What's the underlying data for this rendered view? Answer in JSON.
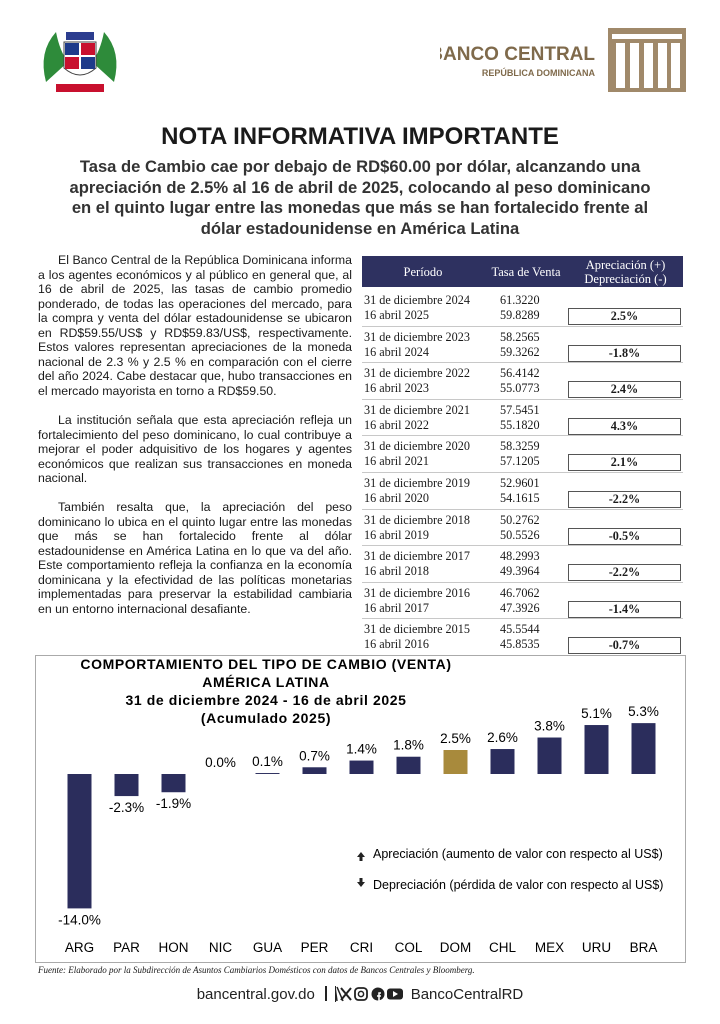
{
  "header": {
    "bank_name": "BANCO CENTRAL",
    "bank_subtitle": "REPÚBLICA DOMINICANA"
  },
  "title": "NOTA INFORMATIVA IMPORTANTE",
  "subtitle": "Tasa de Cambio cae por debajo de RD$60.00 por dólar, alcanzando una apreciación de 2.5% al 16 de abril de 2025, colocando al peso dominicano en el quinto lugar entre las monedas que más se han fortalecido frente al dólar estadounidense en América Latina",
  "paragraphs": [
    "El Banco Central de la República Dominicana informa a los agentes económicos y al público en general que, al 16 de abril de 2025, las tasas de cambio promedio ponderado, de todas las operaciones del mercado, para la compra y venta del dólar estadounidense se ubicaron en RD$59.55/US$ y RD$59.83/US$, respectivamente. Estos valores representan apreciaciones de la moneda nacional de 2.3 % y 2.5 % en comparación con el cierre del año 2024. Cabe destacar que, hubo transacciones en el mercado mayorista en torno a RD$59.50.",
    "La institución señala que esta apreciación refleja un fortalecimiento del peso dominicano, lo cual contribuye a mejorar el poder adquisitivo de los hogares y agentes económicos que realizan sus transacciones en moneda nacional.",
    "También resalta que, la apreciación del peso dominicano lo ubica en el quinto lugar entre las monedas que más se han fortalecido frente al dólar estadounidense en América Latina en lo que va del año. Este comportamiento refleja la confianza en la economía dominicana y la efectividad de las políticas monetarias implementadas para preservar la estabilidad cambiaria en un entorno internacional desafiante."
  ],
  "table": {
    "columns": [
      "Período",
      "Tasa de Venta",
      "Apreciación (+)",
      "Depreciación (-)"
    ],
    "rows": [
      {
        "period_start": "31 de diciembre 2024",
        "rate_start": "61.3220",
        "period_end": "16 abril 2025",
        "rate_end": "59.8289",
        "change": "2.5%"
      },
      {
        "period_start": "31 de diciembre 2023",
        "rate_start": "58.2565",
        "period_end": "16 abril 2024",
        "rate_end": "59.3262",
        "change": "-1.8%"
      },
      {
        "period_start": "31 de diciembre 2022",
        "rate_start": "56.4142",
        "period_end": "16 abril 2023",
        "rate_end": "55.0773",
        "change": "2.4%"
      },
      {
        "period_start": "31 de diciembre 2021",
        "rate_start": "57.5451",
        "period_end": "16 abril 2022",
        "rate_end": "55.1820",
        "change": "4.3%"
      },
      {
        "period_start": "31 de diciembre 2020",
        "rate_start": "58.3259",
        "period_end": "16 abril 2021",
        "rate_end": "57.1205",
        "change": "2.1%"
      },
      {
        "period_start": "31 de diciembre 2019",
        "rate_start": "52.9601",
        "period_end": "16 abril 2020",
        "rate_end": "54.1615",
        "change": "-2.2%"
      },
      {
        "period_start": "31 de diciembre 2018",
        "rate_start": "50.2762",
        "period_end": "16 abril 2019",
        "rate_end": "50.5526",
        "change": "-0.5%"
      },
      {
        "period_start": "31 de diciembre 2017",
        "rate_start": "48.2993",
        "period_end": "16 abril 2018",
        "rate_end": "49.3964",
        "change": "-2.2%"
      },
      {
        "period_start": "31 de diciembre 2016",
        "rate_start": "46.7062",
        "period_end": "16 abril 2017",
        "rate_end": "47.3926",
        "change": "-1.4%"
      },
      {
        "period_start": "31 de diciembre 2015",
        "rate_start": "45.5544",
        "period_end": "16 abril 2016",
        "rate_end": "45.8535",
        "change": "-0.7%"
      }
    ]
  },
  "chart_data": {
    "type": "bar",
    "title": "COMPORTAMIENTO DEL TIPO DE CAMBIO (VENTA)",
    "subtitles": [
      "AMÉRICA LATINA",
      "31 de diciembre 2024 - 16 de abril 2025",
      "(Acumulado 2025)"
    ],
    "categories": [
      "ARG",
      "PAR",
      "HON",
      "NIC",
      "GUA",
      "PER",
      "CRI",
      "COL",
      "DOM",
      "CHL",
      "MEX",
      "URU",
      "BRA"
    ],
    "values": [
      -14.0,
      -2.3,
      -1.9,
      0.0,
      0.1,
      0.7,
      1.4,
      1.8,
      2.5,
      2.6,
      3.8,
      5.1,
      5.3
    ],
    "value_labels": [
      "-14.0%",
      "-2.3%",
      "-1.9%",
      "0.0%",
      "0.1%",
      "0.7%",
      "1.4%",
      "1.8%",
      "2.5%",
      "2.6%",
      "3.8%",
      "5.1%",
      "5.3%"
    ],
    "colors": [
      "#2b2d5c",
      "#2b2d5c",
      "#2b2d5c",
      "#2b2d5c",
      "#2b2d5c",
      "#2b2d5c",
      "#2b2d5c",
      "#2b2d5c",
      "#a88a3c",
      "#2b2d5c",
      "#2b2d5c",
      "#2b2d5c",
      "#2b2d5c"
    ],
    "legend": [
      "Apreciación (aumento de valor con respecto al US$)",
      "Depreciación (pérdida de valor con respecto al US$)"
    ]
  },
  "source": "Fuente: Elaborado por la Subdirección de Asuntos Cambiarios Domésticos con datos de Bancos Centrales y Bloomberg.",
  "footer": {
    "website": "bancentral.gov.do",
    "social": "BancoCentralRD"
  }
}
